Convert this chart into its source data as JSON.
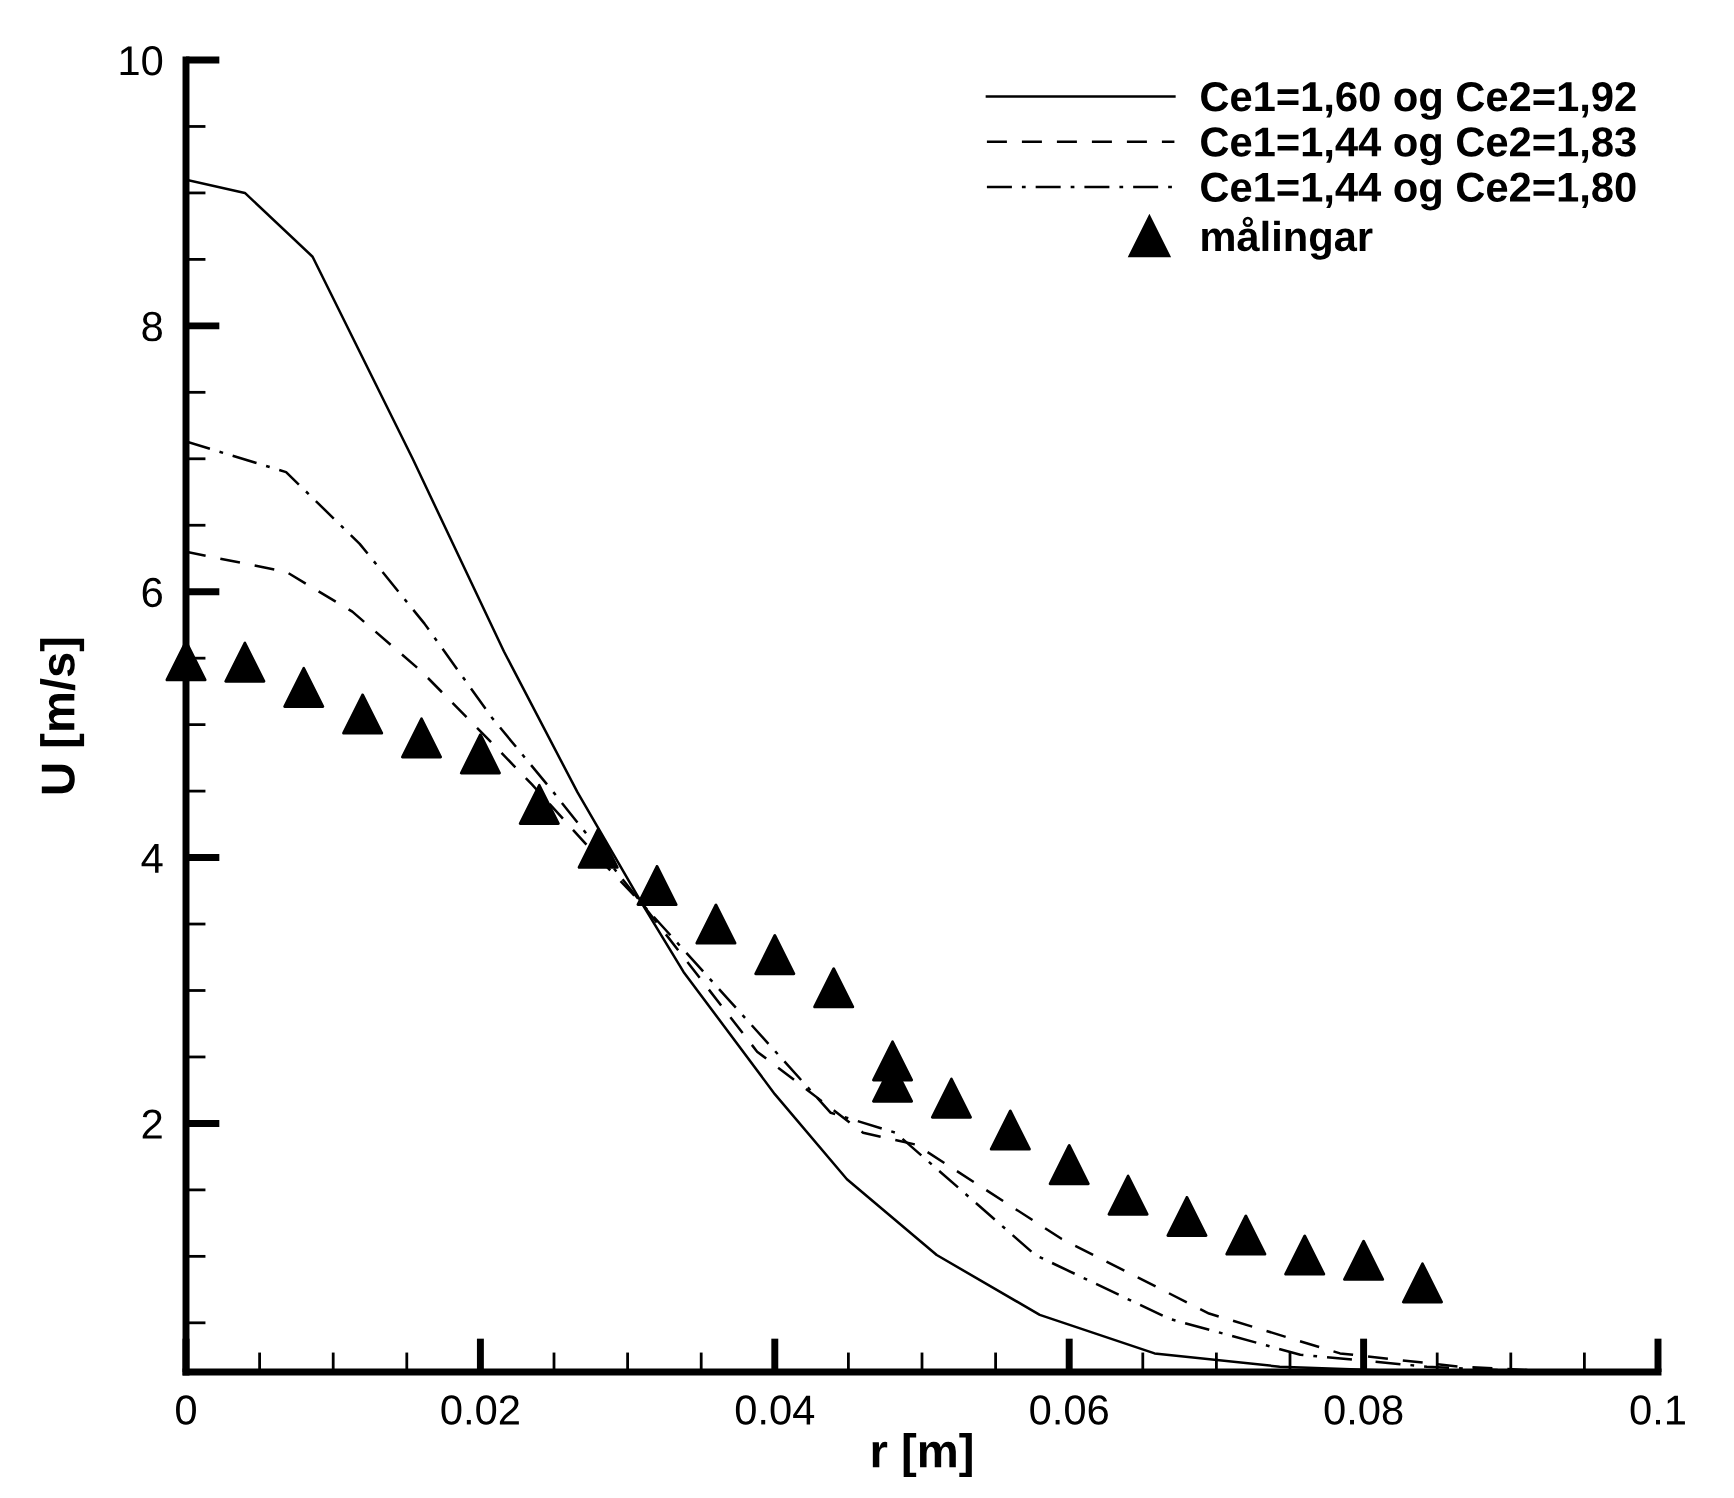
{
  "chart_data": {
    "type": "line",
    "xlabel": "r [m]",
    "ylabel": "U [m/s]",
    "xlim": [
      0,
      0.1
    ],
    "ylim": [
      0.13,
      10
    ],
    "xticks": [
      0,
      0.02,
      0.04,
      0.06,
      0.08,
      0.1
    ],
    "yticks": [
      2,
      4,
      6,
      8,
      10
    ],
    "grid": false,
    "legend": "top right",
    "series": [
      {
        "name": "Ce1=1,60 og Ce2=1,92",
        "type": "line",
        "line_style": "solid",
        "marker": "none",
        "color": "#000000",
        "x": [
          0,
          0.004,
          0.0086,
          0.0154,
          0.0216,
          0.0266,
          0.031,
          0.0338,
          0.04,
          0.0449,
          0.051,
          0.058,
          0.0658,
          0.0743,
          0.082,
          0.09
        ],
        "values": [
          9.1,
          9.0,
          8.52,
          7.0,
          5.55,
          4.49,
          3.65,
          3.14,
          2.22,
          1.58,
          1.01,
          0.56,
          0.27,
          0.17,
          0.14,
          0.13
        ]
      },
      {
        "name": "Ce1=1,44 og Ce2=1,83",
        "type": "line",
        "line_style": "dashed",
        "marker": "none",
        "color": "#000000",
        "x": [
          0,
          0.0068,
          0.0113,
          0.016,
          0.0208,
          0.0235,
          0.028,
          0.031,
          0.0388,
          0.046,
          0.0496,
          0.0595,
          0.0695,
          0.0784,
          0.0865,
          0.092
        ],
        "values": [
          6.3,
          6.15,
          5.85,
          5.4,
          4.86,
          4.55,
          4.0,
          3.65,
          2.54,
          1.93,
          1.84,
          1.13,
          0.57,
          0.27,
          0.17,
          0.14
        ]
      },
      {
        "name": "Ce1=1,44 og Ce2=1,80",
        "type": "line",
        "line_style": "dashdot",
        "marker": "none",
        "color": "#000000",
        "x": [
          0,
          0.0068,
          0.0118,
          0.0162,
          0.0208,
          0.0249,
          0.031,
          0.0438,
          0.0482,
          0.0577,
          0.0668,
          0.0757,
          0.0843,
          0.09
        ],
        "values": [
          7.13,
          6.9,
          6.36,
          5.76,
          5.05,
          4.5,
          3.65,
          2.08,
          1.93,
          1.01,
          0.53,
          0.26,
          0.17,
          0.14
        ]
      },
      {
        "name": "målingar",
        "type": "scatter",
        "marker": "triangle",
        "color": "#000000",
        "x": [
          0,
          0.004,
          0.008,
          0.012,
          0.016,
          0.02,
          0.024,
          0.028,
          0.032,
          0.036,
          0.04,
          0.044,
          0.048,
          0.048,
          0.052,
          0.056,
          0.06,
          0.064,
          0.068,
          0.072,
          0.076,
          0.08,
          0.084
        ],
        "values": [
          5.48,
          5.47,
          5.28,
          5.08,
          4.9,
          4.78,
          4.4,
          4.07,
          3.79,
          3.5,
          3.27,
          3.02,
          2.47,
          2.31,
          2.19,
          1.95,
          1.69,
          1.46,
          1.3,
          1.16,
          1.01,
          0.97,
          0.8
        ]
      }
    ]
  }
}
